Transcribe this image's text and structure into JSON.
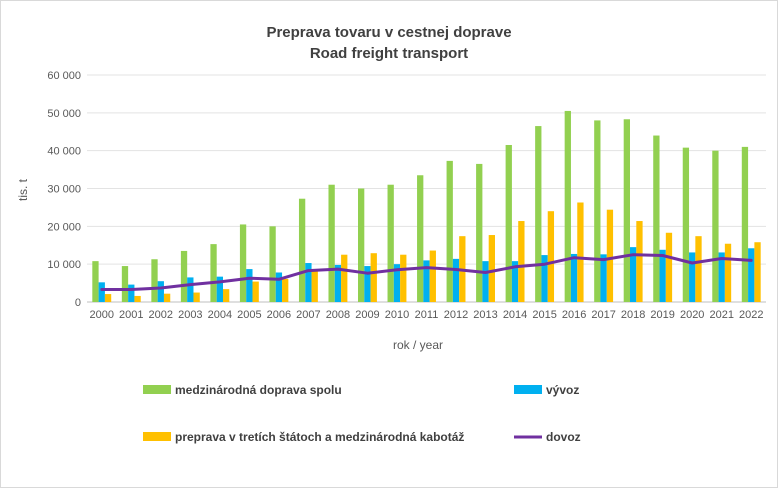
{
  "chart_data": {
    "type": "bar",
    "title": "Preprava tovaru v cestnej doprave",
    "subtitle": "Road freight transport",
    "xlabel": "rok / year",
    "ylabel": "tis. t",
    "ylim": [
      0,
      60000
    ],
    "yticks": [
      "0",
      "10 000",
      "20 000",
      "30 000",
      "40 000",
      "50 000",
      "60 000"
    ],
    "grid": true,
    "legend_position": "bottom",
    "categories": [
      "2000",
      "2001",
      "2002",
      "2003",
      "2004",
      "2005",
      "2006",
      "2007",
      "2008",
      "2009",
      "2010",
      "2011",
      "2012",
      "2013",
      "2014",
      "2015",
      "2016",
      "2017",
      "2018",
      "2019",
      "2020",
      "2021",
      "2022"
    ],
    "series": [
      {
        "name": "medzinárodná doprava spolu",
        "kind": "bar",
        "color": "#92d050",
        "values": [
          10800,
          9500,
          11300,
          13500,
          15300,
          20500,
          20000,
          27300,
          31000,
          30000,
          31000,
          33500,
          37300,
          36500,
          41500,
          46500,
          50500,
          48000,
          48300,
          44000,
          40800,
          40000,
          41000
        ]
      },
      {
        "name": "vývoz",
        "kind": "bar",
        "color": "#00b0f0",
        "values": [
          5200,
          4600,
          5500,
          6500,
          6700,
          8700,
          7800,
          10300,
          9800,
          9500,
          10000,
          11000,
          11400,
          10800,
          10800,
          12400,
          12700,
          12600,
          14500,
          13800,
          13100,
          13100,
          14200
        ]
      },
      {
        "name": "preprava v tretích štátoch a medzinárodná kabotáž",
        "kind": "bar",
        "color": "#ffc000",
        "values": [
          2100,
          1600,
          2200,
          2500,
          3400,
          5400,
          6100,
          8300,
          12500,
          12900,
          12500,
          13600,
          17400,
          17700,
          21400,
          24000,
          26300,
          24400,
          21400,
          18300,
          17400,
          15400,
          15800
        ]
      },
      {
        "name": "dovoz",
        "kind": "line",
        "color": "#7030a0",
        "values": [
          3300,
          3300,
          3700,
          4600,
          5300,
          6300,
          6000,
          8300,
          8700,
          7600,
          8500,
          9100,
          8600,
          7800,
          9300,
          10000,
          11700,
          11200,
          12500,
          12300,
          10300,
          11500,
          11000
        ]
      }
    ]
  }
}
